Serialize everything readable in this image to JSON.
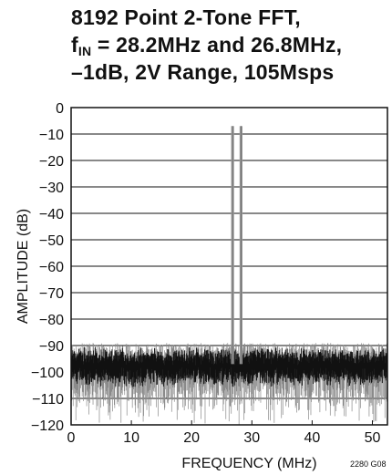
{
  "title": {
    "line1": "8192 Point 2-Tone FFT,",
    "line2_f": "f",
    "line2_sub": "IN",
    "line2_rest": " = 28.2MHz and 26.8MHz,",
    "line3": "–1dB, 2V Range, 105Msps"
  },
  "figure_code": "2280 G08",
  "chart_data": {
    "type": "line",
    "title": "8192 Point 2-Tone FFT, fIN = 28.2MHz and 26.8MHz, –1dB, 2V Range, 105Msps",
    "xlabel": "FREQUENCY (MHz)",
    "ylabel": "AMPLITUDE (dB)",
    "xlim": [
      0,
      52.5
    ],
    "ylim": [
      -120,
      0
    ],
    "x_ticks": [
      "0",
      "10",
      "20",
      "30",
      "40",
      "50"
    ],
    "y_ticks": [
      "0",
      "−10",
      "−20",
      "−30",
      "−40",
      "−50",
      "−60",
      "−70",
      "−80",
      "−90",
      "−100",
      "−110",
      "−120"
    ],
    "grid": "horizontal",
    "series": [
      {
        "tones": [
          {
            "x": 26.8,
            "y": -7
          },
          {
            "x": 28.2,
            "y": -7
          }
        ],
        "noise_floor": {
          "typical": -97,
          "max": -89,
          "min": -120
        }
      }
    ]
  }
}
